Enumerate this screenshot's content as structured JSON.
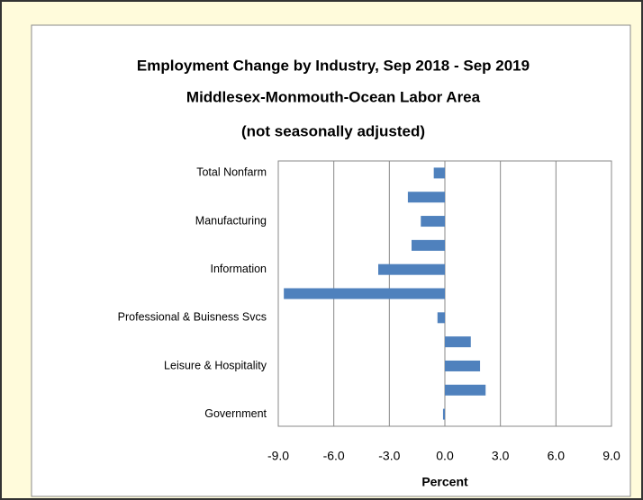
{
  "chart_data": {
    "type": "barh",
    "title": "Employment Change by Industry, Sep 2018 - Sep 2019",
    "subtitle": [
      "Middlesex-Monmouth-Ocean Labor Area",
      "(not seasonally adjusted)"
    ],
    "x_label": "Percent",
    "categories": [
      "Total Nonfarm",
      null,
      "Manufacturing",
      null,
      "Information",
      null,
      "Professional & Buisness Svcs",
      null,
      "Leisure & Hospitality",
      null,
      "Government"
    ],
    "values": [
      -0.6,
      -2.0,
      -1.3,
      -1.8,
      -3.6,
      -8.7,
      -0.4,
      1.4,
      1.9,
      2.2,
      -0.1
    ],
    "color": "#4f81bd",
    "xlim": [
      -9,
      9
    ],
    "xticks": [
      {
        "value": -9,
        "label": "-9.0"
      },
      {
        "value": -6,
        "label": "-6.0"
      },
      {
        "value": -3,
        "label": "-3.0"
      },
      {
        "value": 0,
        "label": "0.0"
      },
      {
        "value": 3,
        "label": "3.0"
      },
      {
        "value": 6,
        "label": "6.0"
      },
      {
        "value": 9,
        "label": "9.0"
      }
    ],
    "grid": true
  }
}
